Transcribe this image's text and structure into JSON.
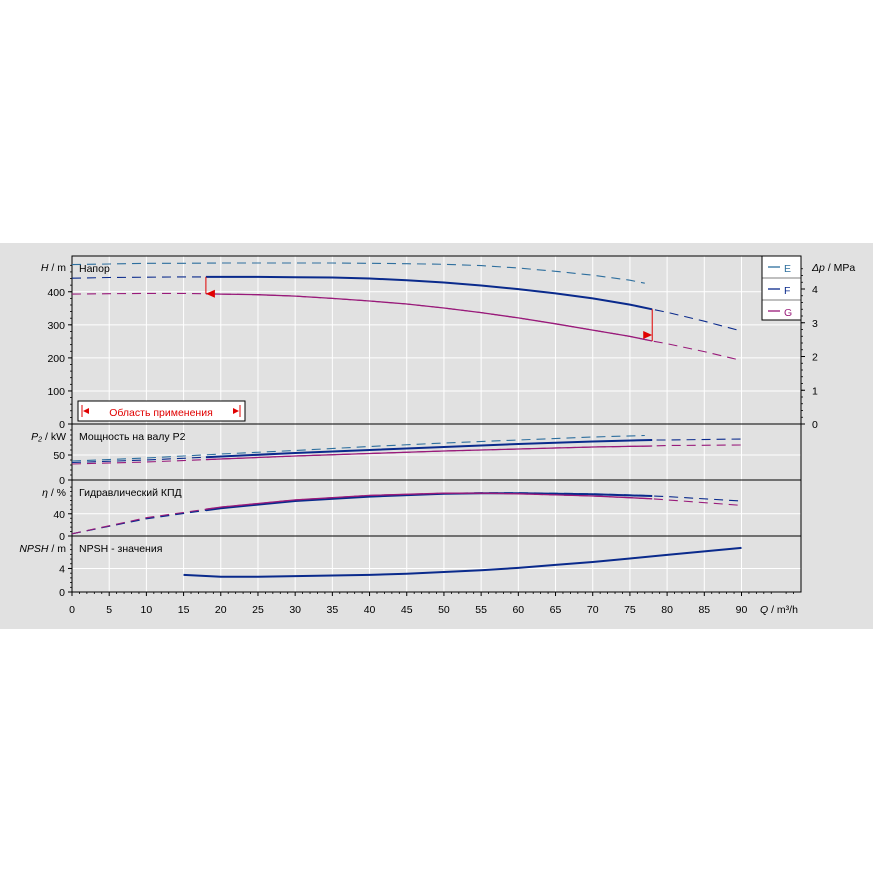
{
  "chart_data": {
    "type": "line",
    "x_axis": {
      "label_symbol": "Q",
      "label_unit": " / m³/h",
      "ticks": [
        "0",
        "5",
        "10",
        "15",
        "20",
        "25",
        "30",
        "35",
        "40",
        "45",
        "50",
        "55",
        "60",
        "65",
        "70",
        "75",
        "80",
        "85",
        "90"
      ],
      "range": [
        0,
        98
      ]
    },
    "legend": [
      {
        "key": "E",
        "name": "E",
        "color": "#2e6f9e"
      },
      {
        "key": "F",
        "name": "F",
        "color": "#0a2a8c"
      },
      {
        "key": "G",
        "name": "G",
        "color": "#991a7a"
      }
    ],
    "application_range": {
      "label": "Область применения",
      "q_min": 18,
      "q_max": 78,
      "color": "#e00000"
    },
    "panels": [
      {
        "id": "head",
        "title": "Напор",
        "y_label_symbol": "H",
        "y_label_unit": " / m",
        "ylim": [
          0,
          490
        ],
        "y_ticks": [
          "0",
          "100",
          "200",
          "300",
          "400"
        ],
        "right_label_symbol": "Δp",
        "right_label_unit": " / MPa",
        "right_ylim": [
          0,
          4.8
        ],
        "right_ticks": [
          "0",
          "1",
          "2",
          "3",
          "4"
        ],
        "series": [
          {
            "key": "E",
            "x": [
              0,
              5,
              10,
              15,
              20,
              25,
              30,
              35,
              40,
              45,
              50,
              55,
              60,
              65,
              70,
              75,
              77
            ],
            "y": [
              482,
              484,
              486,
              486,
              487,
              487,
              487,
              487,
              486,
              485,
              483,
              479,
              472,
              462,
              450,
              435,
              426
            ],
            "solid_range": null
          },
          {
            "key": "F",
            "x": [
              0,
              5,
              10,
              15,
              20,
              25,
              30,
              35,
              40,
              45,
              50,
              55,
              60,
              65,
              70,
              75,
              78,
              80,
              85,
              90
            ],
            "y": [
              441,
              443,
              444,
              445,
              445,
              445,
              444,
              443,
              440,
              435,
              428,
              419,
              408,
              395,
              380,
              361,
              347,
              338,
              311,
              281
            ],
            "solid_range": [
              18,
              78
            ]
          },
          {
            "key": "G",
            "x": [
              0,
              5,
              10,
              15,
              20,
              25,
              30,
              35,
              40,
              45,
              50,
              55,
              60,
              65,
              70,
              75,
              78,
              80,
              85,
              90
            ],
            "y": [
              393,
              394,
              395,
              395,
              393,
              391,
              387,
              380,
              372,
              363,
              351,
              337,
              321,
              303,
              284,
              265,
              251,
              243,
              219,
              192
            ],
            "solid_range": [
              18,
              78
            ]
          }
        ]
      },
      {
        "id": "power",
        "title": "Мощность на валу P2",
        "y_label_symbol": "P₂",
        "y_label_unit": " / kW",
        "ylim": [
          0,
          100
        ],
        "y_ticks": [
          "0",
          "50"
        ],
        "series": [
          {
            "key": "E",
            "x": [
              0,
              10,
              20,
              30,
              40,
              50,
              60,
              70,
              77
            ],
            "y": [
              38,
              44,
              52,
              59,
              67,
              74,
              80,
              86,
              89
            ],
            "solid_range": null
          },
          {
            "key": "F",
            "x": [
              0,
              10,
              20,
              30,
              40,
              50,
              60,
              70,
              78,
              80,
              90
            ],
            "y": [
              35,
              40,
              47,
              54,
              60,
              66,
              72,
              77,
              80,
              80,
              82
            ],
            "solid_range": [
              18,
              78
            ]
          },
          {
            "key": "G",
            "x": [
              0,
              10,
              20,
              30,
              40,
              50,
              60,
              70,
              78,
              80,
              90
            ],
            "y": [
              32,
              36,
              42,
              48,
              53,
              58,
              62,
              66,
              68,
              69,
              70
            ],
            "solid_range": [
              18,
              78
            ]
          }
        ]
      },
      {
        "id": "efficiency",
        "title": "Гидравлический КПД",
        "y_label_symbol": "η",
        "y_label_unit": " / %",
        "ylim": [
          0,
          90
        ],
        "y_ticks": [
          "0",
          "40"
        ],
        "series": [
          {
            "key": "E",
            "x": [
              0,
              10,
              20,
              30,
              40,
              50,
              55,
              60,
              65,
              70,
              75,
              77
            ],
            "y": [
              4,
              32,
              51,
              64,
              72,
              77,
              78,
              78,
              77,
              76,
              74,
              73
            ],
            "solid_range": null
          },
          {
            "key": "F",
            "x": [
              0,
              10,
              20,
              30,
              40,
              50,
              55,
              60,
              65,
              70,
              75,
              78,
              80,
              90
            ],
            "y": [
              4,
              31,
              50,
              63,
              71,
              76,
              77,
              77,
              76,
              75,
              73,
              72,
              71,
              63
            ],
            "solid_range": [
              18,
              78
            ]
          },
          {
            "key": "G",
            "x": [
              0,
              10,
              20,
              30,
              40,
              50,
              55,
              60,
              65,
              70,
              75,
              78,
              80,
              90
            ],
            "y": [
              4,
              33,
              52,
              65,
              73,
              77,
              77,
              76,
              74,
              72,
              69,
              67,
              65,
              55
            ],
            "solid_range": [
              18,
              78
            ]
          }
        ]
      },
      {
        "id": "npsh",
        "title": "NPSH - значения",
        "y_label_symbol": "NPSH",
        "y_label_unit": " / m",
        "ylim": [
          0,
          8.5
        ],
        "y_ticks": [
          "0",
          "4"
        ],
        "series": [
          {
            "key": "F",
            "x": [
              15,
              20,
              25,
              30,
              35,
              40,
              45,
              50,
              55,
              60,
              65,
              70,
              75,
              80,
              85,
              90
            ],
            "y": [
              2.9,
              2.6,
              2.6,
              2.7,
              2.8,
              2.9,
              3.1,
              3.4,
              3.7,
              4.1,
              4.6,
              5.1,
              5.7,
              6.3,
              6.9,
              7.5
            ],
            "solid_range": [
              15,
              90
            ]
          }
        ]
      }
    ]
  }
}
